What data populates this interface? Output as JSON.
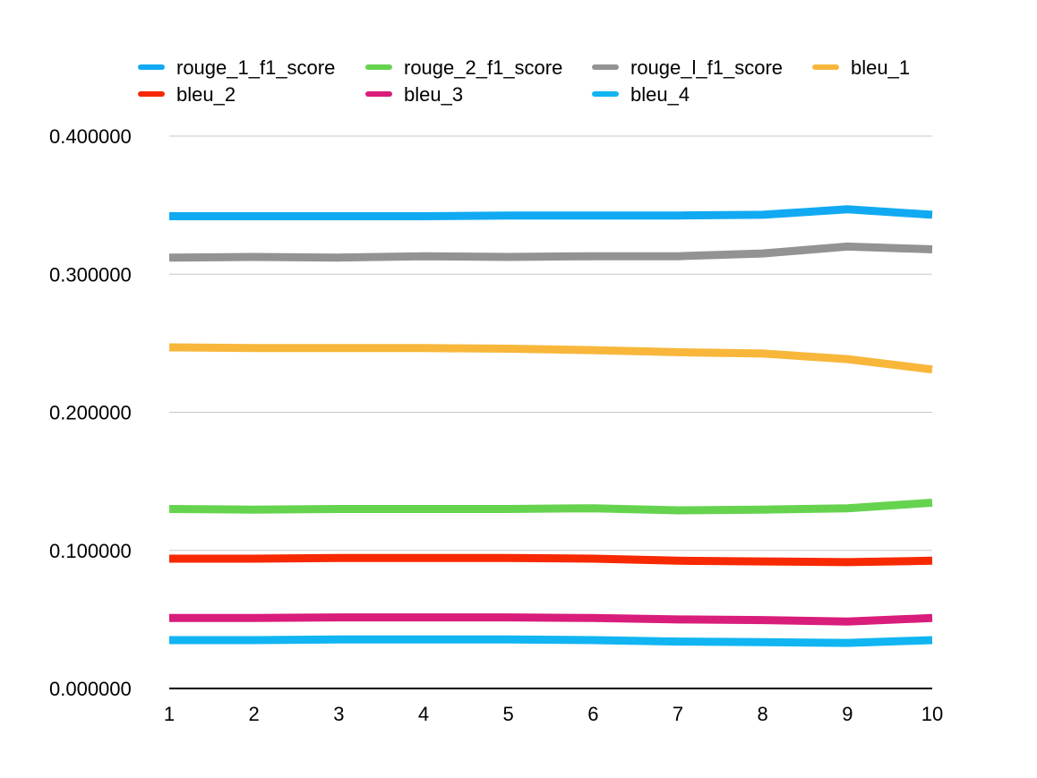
{
  "chart_data": {
    "type": "line",
    "title": "",
    "xlabel": "",
    "ylabel": "",
    "x": [
      1,
      2,
      3,
      4,
      5,
      6,
      7,
      8,
      9,
      10
    ],
    "x_tick_labels": [
      "1",
      "2",
      "3",
      "4",
      "5",
      "6",
      "7",
      "8",
      "9",
      "10"
    ],
    "ylim": [
      0,
      0.4
    ],
    "y_ticks": [
      0,
      0.1,
      0.2,
      0.3,
      0.4
    ],
    "y_tick_labels": [
      "0.000000",
      "0.100000",
      "0.200000",
      "0.300000",
      "0.400000"
    ],
    "grid": true,
    "legend_position": "top",
    "series": [
      {
        "name": "rouge_1_f1_score",
        "color": "#11AAF2",
        "values": [
          0.342,
          0.342,
          0.342,
          0.342,
          0.3425,
          0.3425,
          0.3425,
          0.343,
          0.347,
          0.343
        ]
      },
      {
        "name": "rouge_2_f1_score",
        "color": "#66D34F",
        "values": [
          0.13,
          0.1295,
          0.13,
          0.13,
          0.13,
          0.1305,
          0.129,
          0.1295,
          0.1305,
          0.1345
        ]
      },
      {
        "name": "rouge_l_f1_score",
        "color": "#939393",
        "values": [
          0.312,
          0.3125,
          0.312,
          0.313,
          0.3125,
          0.313,
          0.313,
          0.315,
          0.32,
          0.318
        ]
      },
      {
        "name": "bleu_1",
        "color": "#F8B73B",
        "values": [
          0.247,
          0.2465,
          0.2465,
          0.2465,
          0.246,
          0.245,
          0.2435,
          0.2425,
          0.2385,
          0.231
        ]
      },
      {
        "name": "bleu_2",
        "color": "#F72900",
        "values": [
          0.094,
          0.094,
          0.0945,
          0.0945,
          0.0945,
          0.094,
          0.0925,
          0.092,
          0.0915,
          0.0925
        ]
      },
      {
        "name": "bleu_3",
        "color": "#D91D7A",
        "values": [
          0.051,
          0.051,
          0.0515,
          0.0515,
          0.0515,
          0.051,
          0.05,
          0.0495,
          0.0485,
          0.051
        ]
      },
      {
        "name": "bleu_4",
        "color": "#11B5F2",
        "values": [
          0.035,
          0.035,
          0.0355,
          0.0355,
          0.0355,
          0.035,
          0.034,
          0.0335,
          0.033,
          0.035
        ]
      }
    ]
  }
}
